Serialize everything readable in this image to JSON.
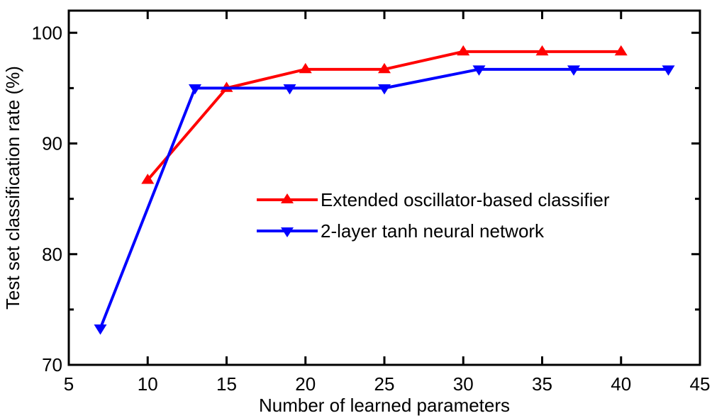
{
  "chart_data": {
    "type": "line",
    "title": "",
    "xlabel": "Number of learned parameters",
    "ylabel": "Test set classification rate (%)",
    "xlim": [
      5,
      45
    ],
    "ylim": [
      70,
      102
    ],
    "x_ticks": [
      5,
      10,
      15,
      20,
      25,
      30,
      35,
      40,
      45
    ],
    "y_ticks": [
      70,
      80,
      90,
      100
    ],
    "x_tick_labels": [
      "5",
      "10",
      "15",
      "20",
      "25",
      "30",
      "35",
      "40",
      "45"
    ],
    "y_tick_labels": [
      "70",
      "80",
      "90",
      "100"
    ],
    "grid": false,
    "legend_position": "center-right",
    "series": [
      {
        "name": "Extended oscillator-based classifier",
        "color": "#ff0000",
        "marker": "triangle-up",
        "x": [
          10,
          15,
          20,
          25,
          30,
          35,
          40
        ],
        "y": [
          86.7,
          95.0,
          96.7,
          96.7,
          98.3,
          98.3,
          98.3
        ]
      },
      {
        "name": "2-layer tanh neural network",
        "color": "#0000ff",
        "marker": "triangle-down",
        "x": [
          7,
          13,
          19,
          25,
          31,
          37,
          43
        ],
        "y": [
          73.3,
          95.0,
          95.0,
          95.0,
          96.7,
          96.7,
          96.7
        ]
      }
    ]
  }
}
